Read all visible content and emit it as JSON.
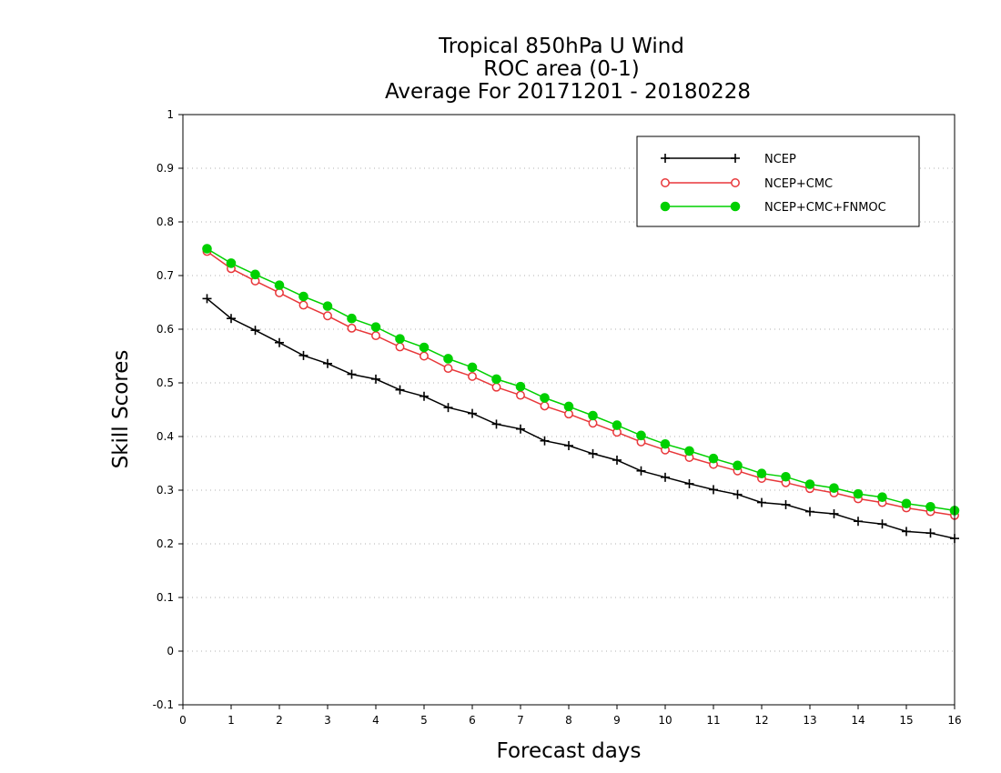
{
  "chart_data": {
    "type": "line",
    "title": [
      "Tropical 850hPa U Wind",
      "ROC area (0-1)",
      "Average For 20171201 - 20180228"
    ],
    "xlabel": "Forecast days",
    "ylabel": "Skill Scores",
    "xlim": [
      0,
      16
    ],
    "ylim": [
      -0.1,
      1
    ],
    "x_ticks": [
      0,
      1,
      2,
      3,
      4,
      5,
      6,
      7,
      8,
      9,
      10,
      11,
      12,
      13,
      14,
      15,
      16
    ],
    "x_tick_labels": [
      "0",
      "1",
      "2",
      "3",
      "4",
      "5",
      "6",
      "7",
      "8",
      "9",
      "10",
      "11",
      "12",
      "13",
      "14",
      "15",
      "16"
    ],
    "y_ticks": [
      -0.1,
      0,
      0.1,
      0.2,
      0.3,
      0.4,
      0.5,
      0.6,
      0.7,
      0.8,
      0.9,
      1
    ],
    "y_tick_labels": [
      "-0.1",
      "0",
      "0.1",
      "0.2",
      "0.3",
      "0.4",
      "0.5",
      "0.6",
      "0.7",
      "0.8",
      "0.9",
      "1"
    ],
    "grid": "horizontal dotted",
    "legend_position": "top-right",
    "x": [
      0.5,
      1,
      1.5,
      2,
      2.5,
      3,
      3.5,
      4,
      4.5,
      5,
      5.5,
      6,
      6.5,
      7,
      7.5,
      8,
      8.5,
      9,
      9.5,
      10,
      10.5,
      11,
      11.5,
      12,
      12.5,
      13,
      13.5,
      14,
      14.5,
      15,
      15.5,
      16
    ],
    "series": [
      {
        "name": "NCEP",
        "color": "#000000",
        "marker": "plus",
        "values": [
          0.657,
          0.62,
          0.598,
          0.575,
          0.551,
          0.536,
          0.516,
          0.507,
          0.487,
          0.475,
          0.454,
          0.443,
          0.423,
          0.414,
          0.392,
          0.383,
          0.368,
          0.356,
          0.336,
          0.324,
          0.312,
          0.301,
          0.292,
          0.277,
          0.273,
          0.26,
          0.256,
          0.242,
          0.237,
          0.223,
          0.22,
          0.21
        ]
      },
      {
        "name": "NCEP+CMC",
        "color": "#e8373a",
        "marker": "open-circle",
        "values": [
          0.745,
          0.713,
          0.69,
          0.668,
          0.645,
          0.625,
          0.602,
          0.588,
          0.567,
          0.55,
          0.527,
          0.512,
          0.492,
          0.477,
          0.457,
          0.442,
          0.425,
          0.408,
          0.39,
          0.375,
          0.361,
          0.348,
          0.336,
          0.322,
          0.314,
          0.303,
          0.295,
          0.284,
          0.277,
          0.267,
          0.26,
          0.253
        ]
      },
      {
        "name": "NCEP+CMC+FNMOC",
        "color": "#00d000",
        "marker": "filled-circle",
        "values": [
          0.75,
          0.723,
          0.702,
          0.682,
          0.661,
          0.643,
          0.62,
          0.604,
          0.582,
          0.566,
          0.545,
          0.529,
          0.507,
          0.493,
          0.472,
          0.456,
          0.439,
          0.421,
          0.402,
          0.386,
          0.373,
          0.359,
          0.346,
          0.331,
          0.325,
          0.311,
          0.304,
          0.293,
          0.287,
          0.275,
          0.269,
          0.262
        ]
      }
    ]
  }
}
